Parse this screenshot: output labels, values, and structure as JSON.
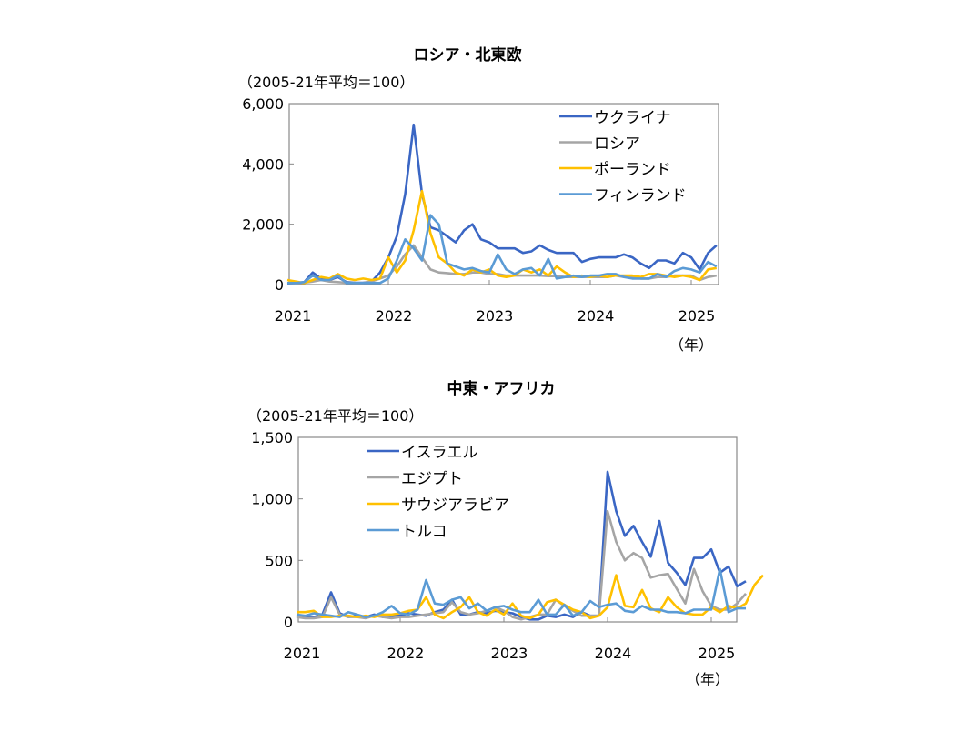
{
  "chart_data": [
    {
      "type": "line",
      "title": "ロシア・北東欧",
      "ylabel": "（2005-21年平均＝100）",
      "xlabel": "（年）",
      "x_start": "2021-01",
      "x_frequency": "monthly",
      "xticks": [
        "2021",
        "2022",
        "2023",
        "2024",
        "2025"
      ],
      "yticks": [
        "0",
        "2,000",
        "4,000",
        "6,000"
      ],
      "ylim": [
        0,
        6000
      ],
      "grid": false,
      "legend_position": "top-right",
      "series": [
        {
          "name": "ウクライナ",
          "color": "#3A66C4",
          "values": [
            30,
            50,
            80,
            400,
            200,
            150,
            250,
            80,
            60,
            60,
            100,
            400,
            900,
            1600,
            3000,
            5300,
            3000,
            1900,
            1800,
            1600,
            1400,
            1800,
            2000,
            1500,
            1400,
            1200,
            1200,
            1200,
            1050,
            1100,
            1300,
            1150,
            1050,
            1050,
            1050,
            750,
            850,
            900,
            900,
            900,
            1000,
            900,
            700,
            550,
            800,
            800,
            700,
            1050,
            900,
            500,
            1050,
            1300
          ]
        },
        {
          "name": "ロシア",
          "color": "#A5A5A5",
          "values": [
            50,
            40,
            60,
            100,
            150,
            100,
            80,
            60,
            50,
            50,
            100,
            200,
            300,
            600,
            1000,
            1300,
            900,
            500,
            400,
            380,
            350,
            350,
            400,
            400,
            350,
            350,
            300,
            300,
            300,
            300,
            300,
            280,
            280,
            250,
            250,
            250,
            250,
            250,
            250,
            300,
            250,
            250,
            200,
            200,
            250,
            250,
            300,
            300,
            300,
            150,
            250,
            300
          ]
        },
        {
          "name": "ポーランド",
          "color": "#FFC000",
          "values": [
            150,
            100,
            50,
            150,
            250,
            200,
            350,
            200,
            150,
            200,
            150,
            200,
            900,
            400,
            800,
            1800,
            3100,
            1700,
            900,
            700,
            400,
            300,
            500,
            400,
            500,
            300,
            250,
            300,
            500,
            400,
            500,
            300,
            600,
            400,
            250,
            300,
            250,
            300,
            250,
            300,
            300,
            300,
            250,
            350,
            350,
            300,
            250,
            300,
            250,
            150,
            500,
            550
          ]
        },
        {
          "name": "フィンランド",
          "color": "#5B9BD5",
          "values": [
            50,
            50,
            80,
            300,
            150,
            150,
            300,
            50,
            50,
            50,
            50,
            50,
            200,
            800,
            1500,
            1200,
            800,
            2300,
            2000,
            700,
            600,
            500,
            550,
            450,
            400,
            1000,
            500,
            350,
            500,
            550,
            300,
            850,
            200,
            250,
            300,
            250,
            300,
            300,
            350,
            350,
            250,
            200,
            200,
            200,
            350,
            250,
            450,
            550,
            500,
            400,
            750,
            600
          ]
        }
      ]
    },
    {
      "type": "line",
      "title": "中東・アフリカ",
      "ylabel": "（2005-21年平均＝100）",
      "xlabel": "（年）",
      "x_start": "2021-01",
      "x_frequency": "monthly",
      "xticks": [
        "2021",
        "2022",
        "2023",
        "2024",
        "2025"
      ],
      "yticks": [
        "0",
        "500",
        "1,000",
        "1,500"
      ],
      "ylim": [
        0,
        1500
      ],
      "grid": false,
      "legend_position": "top-left",
      "series": [
        {
          "name": "イスラエル",
          "color": "#3A66C4",
          "values": [
            50,
            40,
            40,
            60,
            240,
            70,
            40,
            50,
            40,
            60,
            40,
            50,
            50,
            70,
            60,
            50,
            80,
            100,
            180,
            60,
            60,
            80,
            70,
            90,
            80,
            70,
            40,
            20,
            20,
            50,
            40,
            60,
            40,
            80,
            50,
            50,
            1220,
            900,
            700,
            780,
            650,
            530,
            820,
            480,
            400,
            300,
            520,
            520,
            590,
            400,
            450,
            290,
            330
          ]
        },
        {
          "name": "エジプト",
          "color": "#A5A5A5",
          "values": [
            40,
            30,
            30,
            40,
            200,
            60,
            40,
            40,
            30,
            50,
            40,
            30,
            40,
            40,
            50,
            60,
            70,
            80,
            160,
            80,
            60,
            70,
            90,
            120,
            90,
            40,
            20,
            40,
            60,
            60,
            180,
            130,
            90,
            50,
            50,
            50,
            900,
            650,
            500,
            560,
            520,
            360,
            380,
            390,
            270,
            150,
            430,
            250,
            130,
            100,
            100,
            150,
            230
          ]
        },
        {
          "name": "サウジアラビア",
          "color": "#FFC000",
          "values": [
            80,
            80,
            90,
            40,
            40,
            50,
            50,
            40,
            50,
            40,
            60,
            60,
            70,
            90,
            100,
            200,
            60,
            30,
            80,
            120,
            200,
            80,
            50,
            100,
            60,
            150,
            50,
            30,
            60,
            160,
            180,
            140,
            100,
            80,
            30,
            50,
            120,
            380,
            130,
            120,
            260,
            110,
            80,
            200,
            120,
            70,
            60,
            60,
            120,
            80,
            130,
            110,
            150,
            300,
            380
          ]
        },
        {
          "name": "トルコ",
          "color": "#5B9BD5",
          "values": [
            60,
            50,
            70,
            60,
            50,
            40,
            80,
            60,
            40,
            50,
            80,
            130,
            70,
            60,
            100,
            340,
            150,
            140,
            180,
            200,
            110,
            150,
            90,
            120,
            130,
            100,
            80,
            80,
            180,
            60,
            60,
            140,
            50,
            80,
            170,
            120,
            140,
            150,
            90,
            80,
            130,
            100,
            100,
            80,
            80,
            70,
            100,
            100,
            100,
            430,
            80,
            110,
            110
          ]
        }
      ]
    }
  ]
}
